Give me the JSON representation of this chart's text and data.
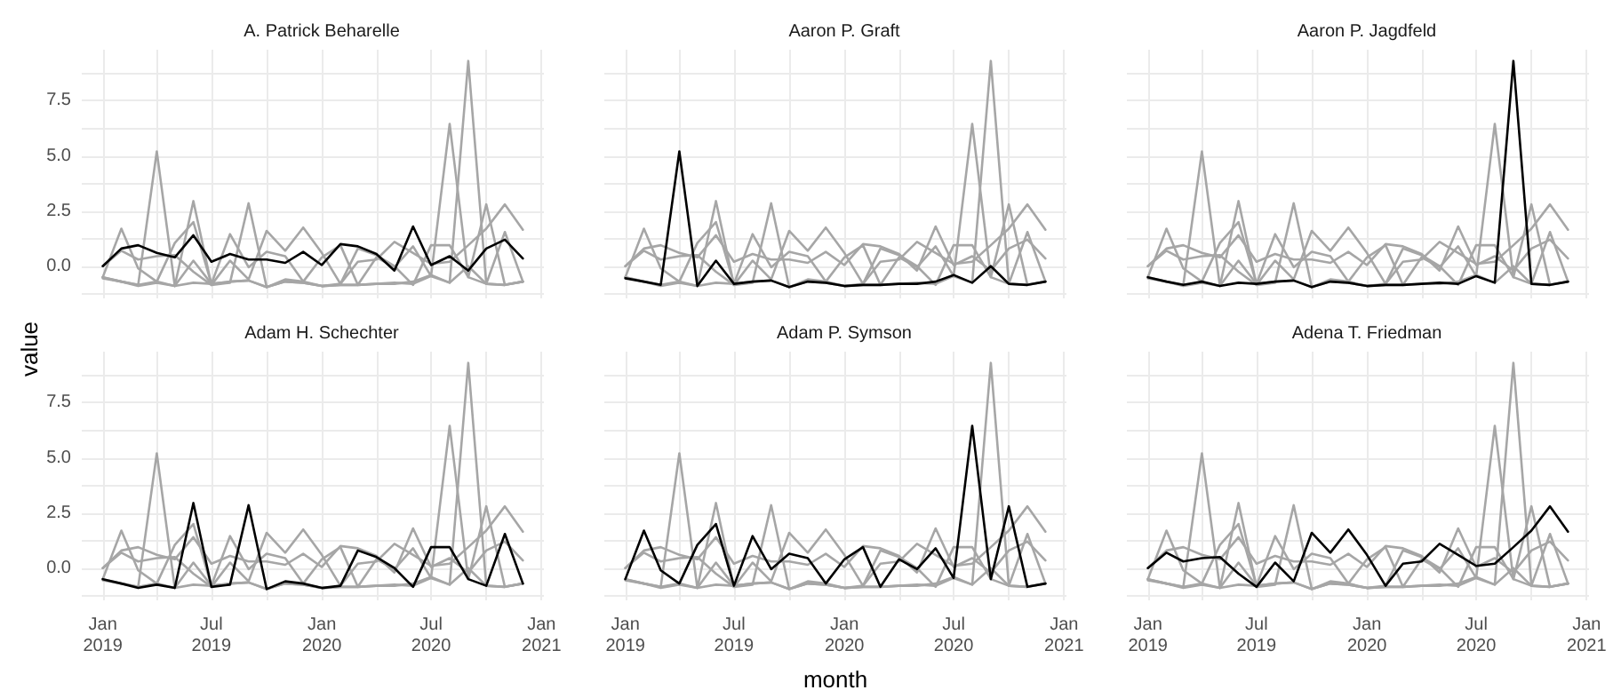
{
  "chart_data": [
    {
      "type": "line",
      "title": "A. Patrick Beharelle",
      "ylabel": "value",
      "tick_labels": "y",
      "grid": true,
      "x": [
        "2019-01",
        "2019-02",
        "2019-03",
        "2019-04",
        "2019-05",
        "2019-06",
        "2019-07",
        "2019-08",
        "2019-09",
        "2019-10",
        "2019-11",
        "2019-12",
        "2020-01",
        "2020-02",
        "2020-03",
        "2020-04",
        "2020-05",
        "2020-06",
        "2020-07",
        "2020-08",
        "2020-09",
        "2020-10",
        "2020-11",
        "2020-12"
      ],
      "xlim": [
        "2018-11-27",
        "2021-01-05"
      ],
      "xticks": [
        {
          "value": "2019-01",
          "label": null
        },
        {
          "value": "2019-04",
          "label": null
        },
        {
          "value": "2019-07",
          "label": null
        },
        {
          "value": "2019-10",
          "label": null
        },
        {
          "value": "2020-01",
          "label": null
        },
        {
          "value": "2020-04",
          "label": null
        },
        {
          "value": "2020-07",
          "label": null
        },
        {
          "value": "2020-10",
          "label": null
        },
        {
          "value": "2021-01",
          "label": null
        }
      ],
      "ylim": [
        -1.46,
        9.81
      ],
      "yticks": [
        {
          "value": -1.25,
          "label": null
        },
        {
          "value": 0,
          "label": "0.0"
        },
        {
          "value": 1.25,
          "label": null
        },
        {
          "value": 2.5,
          "label": "2.5"
        },
        {
          "value": 3.75,
          "label": null
        },
        {
          "value": 5,
          "label": "5.0"
        },
        {
          "value": 6.25,
          "label": null
        },
        {
          "value": 7.5,
          "label": "7.5"
        },
        {
          "value": 8.75,
          "label": null
        }
      ],
      "series": [
        {
          "color": "#a6a6a6",
          "values": [
            -0.55,
            -0.7,
            -0.85,
            5.2,
            -0.9,
            0.25,
            -0.8,
            -0.7,
            -0.65,
            -0.95,
            -0.7,
            -0.75,
            -0.9,
            -0.85,
            -0.85,
            -0.8,
            -0.8,
            -0.7,
            -0.4,
            -0.75,
            0.0,
            -0.8,
            -0.85,
            -0.7
          ]
        },
        {
          "color": "#a6a6a6",
          "values": [
            -0.5,
            -0.7,
            -0.85,
            -0.7,
            -0.9,
            -0.75,
            -0.8,
            -0.7,
            -0.65,
            -0.95,
            -0.7,
            -0.75,
            -0.9,
            -0.85,
            -0.85,
            -0.8,
            -0.75,
            -0.8,
            -0.45,
            -0.75,
            9.3,
            -0.8,
            -0.85,
            -0.7
          ]
        },
        {
          "color": "#a6a6a6",
          "values": [
            -0.5,
            -0.7,
            -0.9,
            -0.75,
            -0.9,
            2.95,
            -0.85,
            -0.75,
            2.85,
            -0.95,
            -0.6,
            -0.7,
            -0.9,
            -0.8,
            0.8,
            0.5,
            0.0,
            -0.85,
            0.95,
            0.95,
            -0.5,
            -0.8,
            1.55,
            -0.7
          ]
        },
        {
          "color": "#a6a6a6",
          "values": [
            -0.5,
            1.7,
            -0.1,
            -0.7,
            1.05,
            2.0,
            -0.8,
            1.45,
            -0.05,
            0.65,
            0.45,
            -0.7,
            0.4,
            0.95,
            -0.85,
            0.4,
            -0.05,
            0.9,
            -0.45,
            6.45,
            -0.5,
            2.8,
            -0.85,
            -0.7
          ]
        },
        {
          "color": "#a6a6a6",
          "values": [
            0.0,
            0.7,
            0.3,
            0.45,
            0.5,
            -0.25,
            -0.85,
            0.25,
            -0.6,
            1.6,
            0.7,
            1.75,
            0.6,
            -0.8,
            0.2,
            0.3,
            1.1,
            0.6,
            0.1,
            0.2,
            0.95,
            1.7,
            2.8,
            1.65
          ]
        },
        {
          "color": "#000000",
          "values": [
            0.0,
            0.8,
            0.95,
            0.6,
            0.4,
            1.4,
            0.2,
            0.55,
            0.3,
            0.3,
            0.15,
            0.65,
            0.05,
            1.0,
            0.9,
            0.55,
            -0.2,
            1.8,
            0.05,
            0.45,
            -0.2,
            0.8,
            1.2,
            0.35
          ]
        }
      ]
    },
    {
      "type": "line",
      "title": "Aaron P. Graft",
      "tick_labels": false,
      "grid": true,
      "x": [
        "2019-01",
        "2019-02",
        "2019-03",
        "2019-04",
        "2019-05",
        "2019-06",
        "2019-07",
        "2019-08",
        "2019-09",
        "2019-10",
        "2019-11",
        "2019-12",
        "2020-01",
        "2020-02",
        "2020-03",
        "2020-04",
        "2020-05",
        "2020-06",
        "2020-07",
        "2020-08",
        "2020-09",
        "2020-10",
        "2020-11",
        "2020-12"
      ],
      "xlim": [
        "2018-11-27",
        "2021-01-05"
      ],
      "xticks": [
        {
          "value": "2019-01",
          "label": null
        },
        {
          "value": "2019-04",
          "label": null
        },
        {
          "value": "2019-07",
          "label": null
        },
        {
          "value": "2019-10",
          "label": null
        },
        {
          "value": "2020-01",
          "label": null
        },
        {
          "value": "2020-04",
          "label": null
        },
        {
          "value": "2020-07",
          "label": null
        },
        {
          "value": "2020-10",
          "label": null
        },
        {
          "value": "2021-01",
          "label": null
        }
      ],
      "ylim": [
        -1.46,
        9.81
      ],
      "yticks": [
        {
          "value": -1.25,
          "label": null
        },
        {
          "value": 0,
          "label": null
        },
        {
          "value": 1.25,
          "label": null
        },
        {
          "value": 2.5,
          "label": null
        },
        {
          "value": 3.75,
          "label": null
        },
        {
          "value": 5,
          "label": null
        },
        {
          "value": 6.25,
          "label": null
        },
        {
          "value": 7.5,
          "label": null
        },
        {
          "value": 8.75,
          "label": null
        }
      ],
      "series": [
        {
          "color": "#a6a6a6",
          "values": [
            0.0,
            0.8,
            0.95,
            0.6,
            0.4,
            1.4,
            0.2,
            0.55,
            0.3,
            0.3,
            0.15,
            0.65,
            0.05,
            1.0,
            0.9,
            0.55,
            -0.2,
            1.8,
            0.05,
            0.45,
            -0.2,
            0.8,
            1.2,
            0.35
          ]
        },
        {
          "color": "#a6a6a6",
          "values": [
            -0.5,
            -0.7,
            -0.85,
            -0.7,
            -0.9,
            -0.75,
            -0.8,
            -0.7,
            -0.65,
            -0.95,
            -0.7,
            -0.75,
            -0.9,
            -0.85,
            -0.85,
            -0.8,
            -0.75,
            -0.8,
            -0.45,
            -0.75,
            9.3,
            -0.8,
            -0.85,
            -0.7
          ]
        },
        {
          "color": "#a6a6a6",
          "values": [
            -0.5,
            -0.7,
            -0.9,
            -0.75,
            -0.9,
            2.95,
            -0.85,
            -0.75,
            2.85,
            -0.95,
            -0.6,
            -0.7,
            -0.9,
            -0.8,
            0.8,
            0.5,
            0.0,
            -0.85,
            0.95,
            0.95,
            -0.5,
            -0.8,
            1.55,
            -0.7
          ]
        },
        {
          "color": "#a6a6a6",
          "values": [
            -0.5,
            1.7,
            -0.1,
            -0.7,
            1.05,
            2.0,
            -0.8,
            1.45,
            -0.05,
            0.65,
            0.45,
            -0.7,
            0.4,
            0.95,
            -0.85,
            0.4,
            -0.05,
            0.9,
            -0.45,
            6.45,
            -0.5,
            2.8,
            -0.85,
            -0.7
          ]
        },
        {
          "color": "#a6a6a6",
          "values": [
            0.0,
            0.7,
            0.3,
            0.45,
            0.5,
            -0.25,
            -0.85,
            0.25,
            -0.6,
            1.6,
            0.7,
            1.75,
            0.6,
            -0.8,
            0.2,
            0.3,
            1.1,
            0.6,
            0.1,
            0.2,
            0.95,
            1.7,
            2.8,
            1.65
          ]
        },
        {
          "color": "#000000",
          "values": [
            -0.55,
            -0.7,
            -0.85,
            5.2,
            -0.9,
            0.25,
            -0.8,
            -0.7,
            -0.65,
            -0.95,
            -0.7,
            -0.75,
            -0.9,
            -0.85,
            -0.85,
            -0.8,
            -0.8,
            -0.7,
            -0.4,
            -0.75,
            0.0,
            -0.8,
            -0.85,
            -0.7
          ]
        }
      ]
    },
    {
      "type": "line",
      "title": "Aaron P. Jagdfeld",
      "tick_labels": false,
      "grid": true,
      "x": [
        "2019-01",
        "2019-02",
        "2019-03",
        "2019-04",
        "2019-05",
        "2019-06",
        "2019-07",
        "2019-08",
        "2019-09",
        "2019-10",
        "2019-11",
        "2019-12",
        "2020-01",
        "2020-02",
        "2020-03",
        "2020-04",
        "2020-05",
        "2020-06",
        "2020-07",
        "2020-08",
        "2020-09",
        "2020-10",
        "2020-11",
        "2020-12"
      ],
      "xlim": [
        "2018-11-27",
        "2021-01-05"
      ],
      "xticks": [
        {
          "value": "2019-01",
          "label": null
        },
        {
          "value": "2019-04",
          "label": null
        },
        {
          "value": "2019-07",
          "label": null
        },
        {
          "value": "2019-10",
          "label": null
        },
        {
          "value": "2020-01",
          "label": null
        },
        {
          "value": "2020-04",
          "label": null
        },
        {
          "value": "2020-07",
          "label": null
        },
        {
          "value": "2020-10",
          "label": null
        },
        {
          "value": "2021-01",
          "label": null
        }
      ],
      "ylim": [
        -1.46,
        9.81
      ],
      "yticks": [
        {
          "value": -1.25,
          "label": null
        },
        {
          "value": 0,
          "label": null
        },
        {
          "value": 1.25,
          "label": null
        },
        {
          "value": 2.5,
          "label": null
        },
        {
          "value": 3.75,
          "label": null
        },
        {
          "value": 5,
          "label": null
        },
        {
          "value": 6.25,
          "label": null
        },
        {
          "value": 7.5,
          "label": null
        },
        {
          "value": 8.75,
          "label": null
        }
      ],
      "series": [
        {
          "color": "#a6a6a6",
          "values": [
            0.0,
            0.8,
            0.95,
            0.6,
            0.4,
            1.4,
            0.2,
            0.55,
            0.3,
            0.3,
            0.15,
            0.65,
            0.05,
            1.0,
            0.9,
            0.55,
            -0.2,
            1.8,
            0.05,
            0.45,
            -0.2,
            0.8,
            1.2,
            0.35
          ]
        },
        {
          "color": "#a6a6a6",
          "values": [
            -0.55,
            -0.7,
            -0.85,
            5.2,
            -0.9,
            0.25,
            -0.8,
            -0.7,
            -0.65,
            -0.95,
            -0.7,
            -0.75,
            -0.9,
            -0.85,
            -0.85,
            -0.8,
            -0.8,
            -0.7,
            -0.4,
            -0.75,
            0.0,
            -0.8,
            -0.85,
            -0.7
          ]
        },
        {
          "color": "#a6a6a6",
          "values": [
            -0.5,
            -0.7,
            -0.9,
            -0.75,
            -0.9,
            2.95,
            -0.85,
            -0.75,
            2.85,
            -0.95,
            -0.6,
            -0.7,
            -0.9,
            -0.8,
            0.8,
            0.5,
            0.0,
            -0.85,
            0.95,
            0.95,
            -0.5,
            -0.8,
            1.55,
            -0.7
          ]
        },
        {
          "color": "#a6a6a6",
          "values": [
            -0.5,
            1.7,
            -0.1,
            -0.7,
            1.05,
            2.0,
            -0.8,
            1.45,
            -0.05,
            0.65,
            0.45,
            -0.7,
            0.4,
            0.95,
            -0.85,
            0.4,
            -0.05,
            0.9,
            -0.45,
            6.45,
            -0.5,
            2.8,
            -0.85,
            -0.7
          ]
        },
        {
          "color": "#a6a6a6",
          "values": [
            0.0,
            0.7,
            0.3,
            0.45,
            0.5,
            -0.25,
            -0.85,
            0.25,
            -0.6,
            1.6,
            0.7,
            1.75,
            0.6,
            -0.8,
            0.2,
            0.3,
            1.1,
            0.6,
            0.1,
            0.2,
            0.95,
            1.7,
            2.8,
            1.65
          ]
        },
        {
          "color": "#000000",
          "values": [
            -0.5,
            -0.7,
            -0.85,
            -0.7,
            -0.9,
            -0.75,
            -0.8,
            -0.7,
            -0.65,
            -0.95,
            -0.7,
            -0.75,
            -0.9,
            -0.85,
            -0.85,
            -0.8,
            -0.75,
            -0.8,
            -0.45,
            -0.75,
            9.3,
            -0.8,
            -0.85,
            -0.7
          ]
        }
      ]
    },
    {
      "type": "line",
      "title": "Adam H. Schechter",
      "grid": true,
      "x": [
        "2019-01",
        "2019-02",
        "2019-03",
        "2019-04",
        "2019-05",
        "2019-06",
        "2019-07",
        "2019-08",
        "2019-09",
        "2019-10",
        "2019-11",
        "2019-12",
        "2020-01",
        "2020-02",
        "2020-03",
        "2020-04",
        "2020-05",
        "2020-06",
        "2020-07",
        "2020-08",
        "2020-09",
        "2020-10",
        "2020-11",
        "2020-12"
      ],
      "xlim": [
        "2018-11-27",
        "2021-01-05"
      ],
      "xticks": [
        {
          "value": "2019-01",
          "label": "Jan 2019"
        },
        {
          "value": "2019-04",
          "label": null
        },
        {
          "value": "2019-07",
          "label": "Jul 2019"
        },
        {
          "value": "2019-10",
          "label": null
        },
        {
          "value": "2020-01",
          "label": "Jan 2020"
        },
        {
          "value": "2020-04",
          "label": null
        },
        {
          "value": "2020-07",
          "label": "Jul 2020"
        },
        {
          "value": "2020-10",
          "label": null
        },
        {
          "value": "2021-01",
          "label": "Jan 2021"
        }
      ],
      "ylim": [
        -1.46,
        9.81
      ],
      "yticks": [
        {
          "value": -1.25,
          "label": null
        },
        {
          "value": 0,
          "label": "0.0"
        },
        {
          "value": 1.25,
          "label": null
        },
        {
          "value": 2.5,
          "label": "2.5"
        },
        {
          "value": 3.75,
          "label": null
        },
        {
          "value": 5,
          "label": "5.0"
        },
        {
          "value": 6.25,
          "label": null
        },
        {
          "value": 7.5,
          "label": "7.5"
        },
        {
          "value": 8.75,
          "label": null
        }
      ],
      "series": [
        {
          "color": "#a6a6a6",
          "values": [
            0.0,
            0.8,
            0.95,
            0.6,
            0.4,
            1.4,
            0.2,
            0.55,
            0.3,
            0.3,
            0.15,
            0.65,
            0.05,
            1.0,
            0.9,
            0.55,
            -0.2,
            1.8,
            0.05,
            0.45,
            -0.2,
            0.8,
            1.2,
            0.35
          ]
        },
        {
          "color": "#a6a6a6",
          "values": [
            -0.55,
            -0.7,
            -0.85,
            5.2,
            -0.9,
            0.25,
            -0.8,
            -0.7,
            -0.65,
            -0.95,
            -0.7,
            -0.75,
            -0.9,
            -0.85,
            -0.85,
            -0.8,
            -0.8,
            -0.7,
            -0.4,
            -0.75,
            0.0,
            -0.8,
            -0.85,
            -0.7
          ]
        },
        {
          "color": "#a6a6a6",
          "values": [
            -0.5,
            -0.7,
            -0.85,
            -0.7,
            -0.9,
            -0.75,
            -0.8,
            -0.7,
            -0.65,
            -0.95,
            -0.7,
            -0.75,
            -0.9,
            -0.85,
            -0.85,
            -0.8,
            -0.75,
            -0.8,
            -0.45,
            -0.75,
            9.3,
            -0.8,
            -0.85,
            -0.7
          ]
        },
        {
          "color": "#a6a6a6",
          "values": [
            -0.5,
            1.7,
            -0.1,
            -0.7,
            1.05,
            2.0,
            -0.8,
            1.45,
            -0.05,
            0.65,
            0.45,
            -0.7,
            0.4,
            0.95,
            -0.85,
            0.4,
            -0.05,
            0.9,
            -0.45,
            6.45,
            -0.5,
            2.8,
            -0.85,
            -0.7
          ]
        },
        {
          "color": "#a6a6a6",
          "values": [
            0.0,
            0.7,
            0.3,
            0.45,
            0.5,
            -0.25,
            -0.85,
            0.25,
            -0.6,
            1.6,
            0.7,
            1.75,
            0.6,
            -0.8,
            0.2,
            0.3,
            1.1,
            0.6,
            0.1,
            0.2,
            0.95,
            1.7,
            2.8,
            1.65
          ]
        },
        {
          "color": "#000000",
          "values": [
            -0.5,
            -0.7,
            -0.9,
            -0.75,
            -0.9,
            2.95,
            -0.85,
            -0.75,
            2.85,
            -0.95,
            -0.6,
            -0.7,
            -0.9,
            -0.8,
            0.8,
            0.5,
            0.0,
            -0.85,
            0.95,
            0.95,
            -0.5,
            -0.8,
            1.55,
            -0.7
          ]
        }
      ]
    },
    {
      "type": "line",
      "title": "Adam P. Symson",
      "xlabel": "month",
      "tick_labels": "x",
      "grid": true,
      "x": [
        "2019-01",
        "2019-02",
        "2019-03",
        "2019-04",
        "2019-05",
        "2019-06",
        "2019-07",
        "2019-08",
        "2019-09",
        "2019-10",
        "2019-11",
        "2019-12",
        "2020-01",
        "2020-02",
        "2020-03",
        "2020-04",
        "2020-05",
        "2020-06",
        "2020-07",
        "2020-08",
        "2020-09",
        "2020-10",
        "2020-11",
        "2020-12"
      ],
      "xlim": [
        "2018-11-27",
        "2021-01-05"
      ],
      "xticks": [
        {
          "value": "2019-01",
          "label": "Jan 2019"
        },
        {
          "value": "2019-04",
          "label": null
        },
        {
          "value": "2019-07",
          "label": "Jul 2019"
        },
        {
          "value": "2019-10",
          "label": null
        },
        {
          "value": "2020-01",
          "label": "Jan 2020"
        },
        {
          "value": "2020-04",
          "label": null
        },
        {
          "value": "2020-07",
          "label": "Jul 2020"
        },
        {
          "value": "2020-10",
          "label": null
        },
        {
          "value": "2021-01",
          "label": "Jan 2021"
        }
      ],
      "ylim": [
        -1.46,
        9.81
      ],
      "yticks": [
        {
          "value": -1.25,
          "label": null
        },
        {
          "value": 0,
          "label": null
        },
        {
          "value": 1.25,
          "label": null
        },
        {
          "value": 2.5,
          "label": null
        },
        {
          "value": 3.75,
          "label": null
        },
        {
          "value": 5,
          "label": null
        },
        {
          "value": 6.25,
          "label": null
        },
        {
          "value": 7.5,
          "label": null
        },
        {
          "value": 8.75,
          "label": null
        }
      ],
      "series": [
        {
          "color": "#a6a6a6",
          "values": [
            0.0,
            0.8,
            0.95,
            0.6,
            0.4,
            1.4,
            0.2,
            0.55,
            0.3,
            0.3,
            0.15,
            0.65,
            0.05,
            1.0,
            0.9,
            0.55,
            -0.2,
            1.8,
            0.05,
            0.45,
            -0.2,
            0.8,
            1.2,
            0.35
          ]
        },
        {
          "color": "#a6a6a6",
          "values": [
            -0.55,
            -0.7,
            -0.85,
            5.2,
            -0.9,
            0.25,
            -0.8,
            -0.7,
            -0.65,
            -0.95,
            -0.7,
            -0.75,
            -0.9,
            -0.85,
            -0.85,
            -0.8,
            -0.8,
            -0.7,
            -0.4,
            -0.75,
            0.0,
            -0.8,
            -0.85,
            -0.7
          ]
        },
        {
          "color": "#a6a6a6",
          "values": [
            -0.5,
            -0.7,
            -0.85,
            -0.7,
            -0.9,
            -0.75,
            -0.8,
            -0.7,
            -0.65,
            -0.95,
            -0.7,
            -0.75,
            -0.9,
            -0.85,
            -0.85,
            -0.8,
            -0.75,
            -0.8,
            -0.45,
            -0.75,
            9.3,
            -0.8,
            -0.85,
            -0.7
          ]
        },
        {
          "color": "#a6a6a6",
          "values": [
            -0.5,
            -0.7,
            -0.9,
            -0.75,
            -0.9,
            2.95,
            -0.85,
            -0.75,
            2.85,
            -0.95,
            -0.6,
            -0.7,
            -0.9,
            -0.8,
            0.8,
            0.5,
            0.0,
            -0.85,
            0.95,
            0.95,
            -0.5,
            -0.8,
            1.55,
            -0.7
          ]
        },
        {
          "color": "#a6a6a6",
          "values": [
            0.0,
            0.7,
            0.3,
            0.45,
            0.5,
            -0.25,
            -0.85,
            0.25,
            -0.6,
            1.6,
            0.7,
            1.75,
            0.6,
            -0.8,
            0.2,
            0.3,
            1.1,
            0.6,
            0.1,
            0.2,
            0.95,
            1.7,
            2.8,
            1.65
          ]
        },
        {
          "color": "#000000",
          "values": [
            -0.5,
            1.7,
            -0.1,
            -0.7,
            1.05,
            2.0,
            -0.8,
            1.45,
            -0.05,
            0.65,
            0.45,
            -0.7,
            0.4,
            0.95,
            -0.85,
            0.4,
            -0.05,
            0.9,
            -0.45,
            6.45,
            -0.5,
            2.8,
            -0.85,
            -0.7
          ]
        }
      ]
    },
    {
      "type": "line",
      "title": "Adena T. Friedman",
      "tick_labels": "x",
      "grid": true,
      "x": [
        "2019-01",
        "2019-02",
        "2019-03",
        "2019-04",
        "2019-05",
        "2019-06",
        "2019-07",
        "2019-08",
        "2019-09",
        "2019-10",
        "2019-11",
        "2019-12",
        "2020-01",
        "2020-02",
        "2020-03",
        "2020-04",
        "2020-05",
        "2020-06",
        "2020-07",
        "2020-08",
        "2020-09",
        "2020-10",
        "2020-11",
        "2020-12"
      ],
      "xlim": [
        "2018-11-27",
        "2021-01-05"
      ],
      "xticks": [
        {
          "value": "2019-01",
          "label": "Jan 2019"
        },
        {
          "value": "2019-04",
          "label": null
        },
        {
          "value": "2019-07",
          "label": "Jul 2019"
        },
        {
          "value": "2019-10",
          "label": null
        },
        {
          "value": "2020-01",
          "label": "Jan 2020"
        },
        {
          "value": "2020-04",
          "label": null
        },
        {
          "value": "2020-07",
          "label": "Jul 2020"
        },
        {
          "value": "2020-10",
          "label": null
        },
        {
          "value": "2021-01",
          "label": "Jan 2021"
        }
      ],
      "ylim": [
        -1.46,
        9.81
      ],
      "yticks": [
        {
          "value": -1.25,
          "label": null
        },
        {
          "value": 0,
          "label": null
        },
        {
          "value": 1.25,
          "label": null
        },
        {
          "value": 2.5,
          "label": null
        },
        {
          "value": 3.75,
          "label": null
        },
        {
          "value": 5,
          "label": null
        },
        {
          "value": 6.25,
          "label": null
        },
        {
          "value": 7.5,
          "label": null
        },
        {
          "value": 8.75,
          "label": null
        }
      ],
      "series": [
        {
          "color": "#a6a6a6",
          "values": [
            0.0,
            0.8,
            0.95,
            0.6,
            0.4,
            1.4,
            0.2,
            0.55,
            0.3,
            0.3,
            0.15,
            0.65,
            0.05,
            1.0,
            0.9,
            0.55,
            -0.2,
            1.8,
            0.05,
            0.45,
            -0.2,
            0.8,
            1.2,
            0.35
          ]
        },
        {
          "color": "#a6a6a6",
          "values": [
            -0.55,
            -0.7,
            -0.85,
            5.2,
            -0.9,
            0.25,
            -0.8,
            -0.7,
            -0.65,
            -0.95,
            -0.7,
            -0.75,
            -0.9,
            -0.85,
            -0.85,
            -0.8,
            -0.8,
            -0.7,
            -0.4,
            -0.75,
            0.0,
            -0.8,
            -0.85,
            -0.7
          ]
        },
        {
          "color": "#a6a6a6",
          "values": [
            -0.5,
            -0.7,
            -0.85,
            -0.7,
            -0.9,
            -0.75,
            -0.8,
            -0.7,
            -0.65,
            -0.95,
            -0.7,
            -0.75,
            -0.9,
            -0.85,
            -0.85,
            -0.8,
            -0.75,
            -0.8,
            -0.45,
            -0.75,
            9.3,
            -0.8,
            -0.85,
            -0.7
          ]
        },
        {
          "color": "#a6a6a6",
          "values": [
            -0.5,
            -0.7,
            -0.9,
            -0.75,
            -0.9,
            2.95,
            -0.85,
            -0.75,
            2.85,
            -0.95,
            -0.6,
            -0.7,
            -0.9,
            -0.8,
            0.8,
            0.5,
            0.0,
            -0.85,
            0.95,
            0.95,
            -0.5,
            -0.8,
            1.55,
            -0.7
          ]
        },
        {
          "color": "#a6a6a6",
          "values": [
            -0.5,
            1.7,
            -0.1,
            -0.7,
            1.05,
            2.0,
            -0.8,
            1.45,
            -0.05,
            0.65,
            0.45,
            -0.7,
            0.4,
            0.95,
            -0.85,
            0.4,
            -0.05,
            0.9,
            -0.45,
            6.45,
            -0.5,
            2.8,
            -0.85,
            -0.7
          ]
        },
        {
          "color": "#000000",
          "values": [
            0.0,
            0.7,
            0.3,
            0.45,
            0.5,
            -0.25,
            -0.85,
            0.25,
            -0.6,
            1.6,
            0.7,
            1.75,
            0.6,
            -0.8,
            0.2,
            0.3,
            1.1,
            0.6,
            0.1,
            0.2,
            0.95,
            1.7,
            2.8,
            1.65
          ]
        }
      ]
    }
  ]
}
